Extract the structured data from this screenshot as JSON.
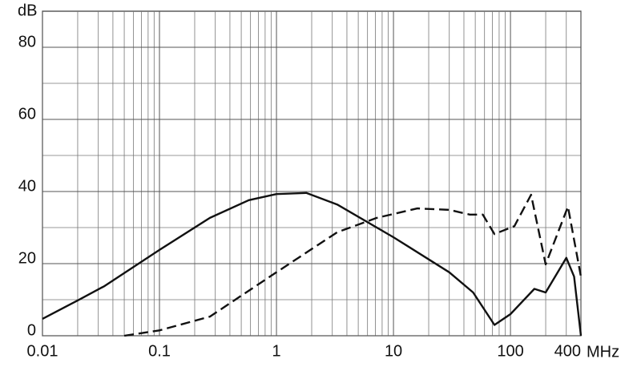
{
  "chart_data": {
    "type": "line",
    "y_label": "dB",
    "x_label": "MHz",
    "log_x": true,
    "grid": true,
    "xlim": [
      0.01,
      400
    ],
    "xticks": [
      0.01,
      0.1,
      1,
      10,
      100,
      400
    ],
    "ylim": [
      0,
      90
    ],
    "yticks": [
      0,
      20,
      40,
      60,
      80
    ],
    "series": [
      {
        "color": "#111111",
        "dash": false,
        "x": [
          0.01,
          0.02,
          0.034,
          0.1,
          0.27,
          0.58,
          1,
          1.8,
          3.3,
          10,
          30,
          48,
          73,
          100,
          160,
          200,
          300,
          350,
          400
        ],
        "values": [
          4.7,
          9.8,
          13.8,
          23.8,
          32.7,
          37.6,
          39.3,
          39.6,
          36.4,
          27.3,
          17.6,
          12,
          3,
          6,
          13,
          12,
          21.6,
          16.4,
          0
        ]
      },
      {
        "color": "#111111",
        "dash": true,
        "x": [
          0.05,
          0.1,
          0.27,
          1,
          3.3,
          7.2,
          16,
          30,
          45,
          58,
          73,
          108,
          150,
          200,
          310,
          400
        ],
        "values": [
          0,
          1.5,
          5.3,
          17.6,
          28.7,
          32.7,
          35.3,
          34.9,
          33.6,
          33.6,
          28.2,
          30.4,
          39.1,
          19.8,
          35.8,
          16.4
        ]
      }
    ]
  }
}
